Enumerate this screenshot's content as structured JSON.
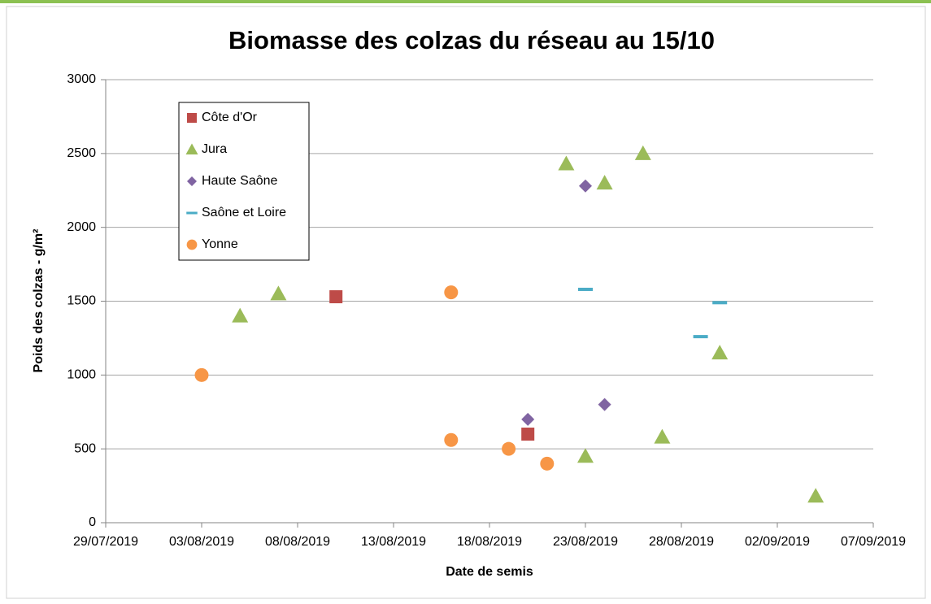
{
  "chart_data": {
    "type": "scatter",
    "title": "Biomasse des colzas du réseau au 15/10",
    "x_label": "Date de semis",
    "y_label": "Poids des colzas - g/m²",
    "xlim": [
      "29/07/2019",
      "07/09/2019"
    ],
    "xticks": [
      "29/07/2019",
      "03/08/2019",
      "08/08/2019",
      "13/08/2019",
      "18/08/2019",
      "23/08/2019",
      "28/08/2019",
      "02/09/2019",
      "07/09/2019"
    ],
    "ylim": [
      0,
      3000
    ],
    "yticks": [
      0,
      500,
      1000,
      1500,
      2000,
      2500,
      3000
    ],
    "grid": true,
    "legend": "upper left",
    "series": [
      {
        "name": "Côte d'Or",
        "color": "#be4b48",
        "marker": "square",
        "x": [
          "10/08/2019",
          "20/08/2019"
        ],
        "values": [
          1530,
          600
        ]
      },
      {
        "name": "Jura",
        "color": "#9bbb59",
        "marker": "triangle",
        "x": [
          "05/08/2019",
          "07/08/2019",
          "22/08/2019",
          "24/08/2019",
          "26/08/2019",
          "23/08/2019",
          "27/08/2019",
          "30/08/2019",
          "04/09/2019"
        ],
        "values": [
          1400,
          1550,
          2430,
          2300,
          2500,
          450,
          580,
          1150,
          180
        ]
      },
      {
        "name": "Haute Saône",
        "color": "#8064a2",
        "marker": "diamond",
        "x": [
          "23/08/2019",
          "20/08/2019",
          "24/08/2019"
        ],
        "values": [
          2280,
          700,
          800
        ]
      },
      {
        "name": "Saône et Loire",
        "color": "#4bacc6",
        "marker": "dash",
        "x": [
          "23/08/2019",
          "29/08/2019",
          "30/08/2019"
        ],
        "values": [
          1580,
          1260,
          1490
        ]
      },
      {
        "name": "Yonne",
        "color": "#f79646",
        "marker": "circle",
        "x": [
          "03/08/2019",
          "16/08/2019",
          "16/08/2019",
          "19/08/2019",
          "21/08/2019"
        ],
        "values": [
          1000,
          1560,
          560,
          500,
          400
        ]
      }
    ]
  }
}
